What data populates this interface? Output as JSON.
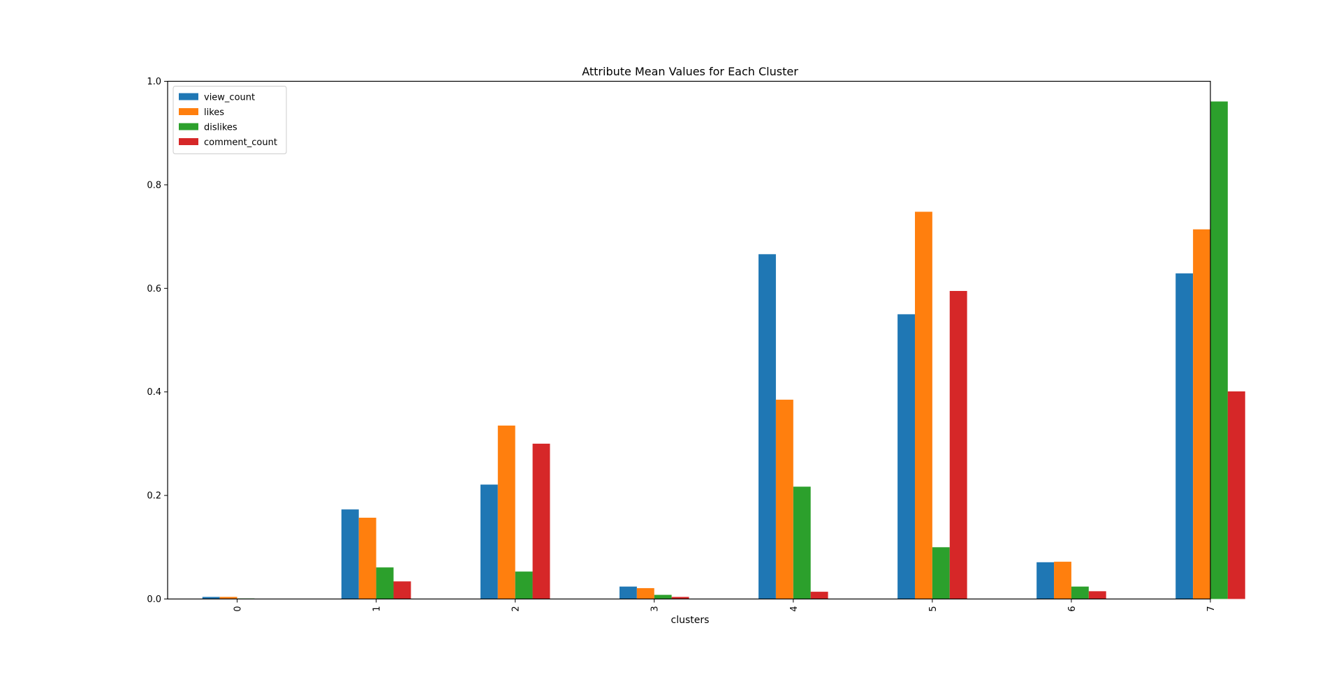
{
  "chart_data": {
    "type": "bar",
    "title": "Attribute Mean Values for Each Cluster",
    "xlabel": "clusters",
    "ylabel": "",
    "categories": [
      "0",
      "1",
      "2",
      "3",
      "4",
      "5",
      "6",
      "7"
    ],
    "ylim": [
      0,
      1.0
    ],
    "yticks": [
      "0.0",
      "0.2",
      "0.4",
      "0.6",
      "0.8",
      "1.0"
    ],
    "grid": false,
    "legend_position": "upper-left",
    "series": [
      {
        "name": "view_count",
        "color": "#1f77b4",
        "values": [
          0.004,
          0.173,
          0.221,
          0.024,
          0.666,
          0.55,
          0.071,
          0.629
        ]
      },
      {
        "name": "likes",
        "color": "#ff7f0e",
        "values": [
          0.004,
          0.157,
          0.335,
          0.021,
          0.385,
          0.748,
          0.072,
          0.714
        ]
      },
      {
        "name": "dislikes",
        "color": "#2ca02c",
        "values": [
          0.001,
          0.061,
          0.053,
          0.008,
          0.217,
          0.1,
          0.024,
          0.961
        ]
      },
      {
        "name": "comment_count",
        "color": "#d62728",
        "values": [
          0.0,
          0.034,
          0.3,
          0.004,
          0.014,
          0.595,
          0.015,
          0.401
        ]
      }
    ]
  }
}
